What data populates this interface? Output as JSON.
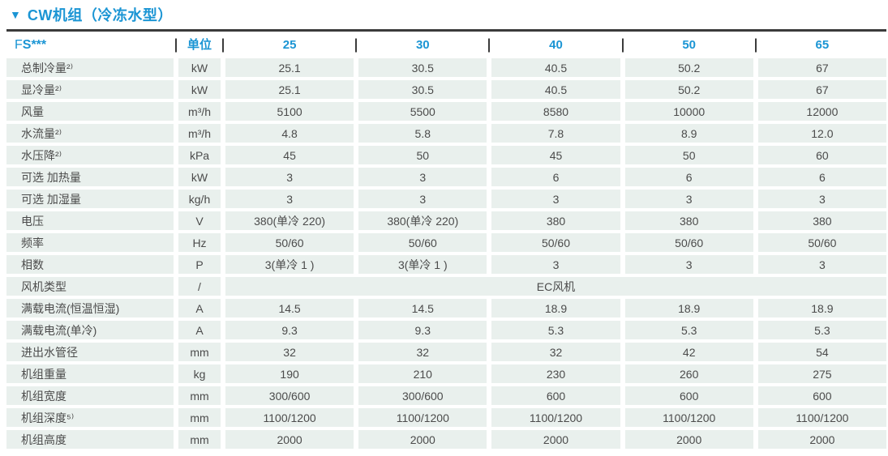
{
  "colors": {
    "accent_blue": "#1b95d4",
    "divider_dark": "#3b3b3b",
    "cell_background": "#e9f0ed",
    "cell_text": "#4b4b4b"
  },
  "title": {
    "marker": "▼",
    "text": "CW机组（冷冻水型）"
  },
  "table": {
    "header": {
      "model_prefix_light": "F",
      "model_prefix_bold": "S***",
      "unit_label": "单位",
      "models": [
        "25",
        "30",
        "40",
        "50",
        "65"
      ]
    },
    "rows": [
      {
        "label": "总制冷量²⁾",
        "unit": "kW",
        "values": [
          "25.1",
          "30.5",
          "40.5",
          "50.2",
          "67"
        ]
      },
      {
        "label": "显冷量²⁾",
        "unit": "kW",
        "values": [
          "25.1",
          "30.5",
          "40.5",
          "50.2",
          "67"
        ]
      },
      {
        "label": "风量",
        "unit": "m³/h",
        "values": [
          "5100",
          "5500",
          "8580",
          "10000",
          "12000"
        ]
      },
      {
        "label": "水流量²⁾",
        "unit": "m³/h",
        "values": [
          "4.8",
          "5.8",
          "7.8",
          "8.9",
          "12.0"
        ]
      },
      {
        "label": "水压降²⁾",
        "unit": "kPa",
        "values": [
          "45",
          "50",
          "45",
          "50",
          "60"
        ]
      },
      {
        "label": "可选 加热量",
        "unit": "kW",
        "values": [
          "3",
          "3",
          "6",
          "6",
          "6"
        ]
      },
      {
        "label": "可选 加湿量",
        "unit": "kg/h",
        "values": [
          "3",
          "3",
          "3",
          "3",
          "3"
        ]
      },
      {
        "label": "电压",
        "unit": "V",
        "values": [
          "380(单冷 220)",
          "380(单冷 220)",
          "380",
          "380",
          "380"
        ]
      },
      {
        "label": "频率",
        "unit": "Hz",
        "values": [
          "50/60",
          "50/60",
          "50/60",
          "50/60",
          "50/60"
        ]
      },
      {
        "label": "相数",
        "unit": "P",
        "values": [
          "3(单冷 1 )",
          "3(单冷 1 )",
          "3",
          "3",
          "3"
        ]
      },
      {
        "label": "风机类型",
        "unit": "/",
        "merged": true,
        "values": [
          "EC风机"
        ]
      },
      {
        "label": "满载电流(恒温恒湿)",
        "unit": "A",
        "values": [
          "14.5",
          "14.5",
          "18.9",
          "18.9",
          "18.9"
        ]
      },
      {
        "label": "满载电流(单冷)",
        "unit": "A",
        "values": [
          "9.3",
          "9.3",
          "5.3",
          "5.3",
          "5.3"
        ]
      },
      {
        "label": "进出水管径",
        "unit": "mm",
        "values": [
          "32",
          "32",
          "32",
          "42",
          "54"
        ]
      },
      {
        "label": "机组重量",
        "unit": "kg",
        "values": [
          "190",
          "210",
          "230",
          "260",
          "275"
        ]
      },
      {
        "label": "机组宽度",
        "unit": "mm",
        "values": [
          "300/600",
          "300/600",
          "600",
          "600",
          "600"
        ]
      },
      {
        "label": "机组深度⁵⁾",
        "unit": "mm",
        "values": [
          "1100/1200",
          "1100/1200",
          "1100/1200",
          "1100/1200",
          "1100/1200"
        ]
      },
      {
        "label": "机组高度",
        "unit": "mm",
        "values": [
          "2000",
          "2000",
          "2000",
          "2000",
          "2000"
        ]
      }
    ]
  }
}
